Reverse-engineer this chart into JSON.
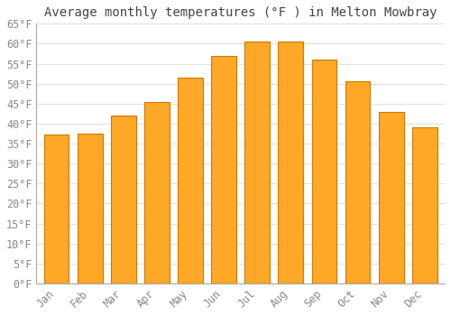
{
  "title": "Average monthly temperatures (°F ) in Melton Mowbray",
  "months": [
    "Jan",
    "Feb",
    "Mar",
    "Apr",
    "May",
    "Jun",
    "Jul",
    "Aug",
    "Sep",
    "Oct",
    "Nov",
    "Dec"
  ],
  "values": [
    37.2,
    37.4,
    42.0,
    45.5,
    51.5,
    57.0,
    60.5,
    60.5,
    56.0,
    50.5,
    43.0,
    39.0
  ],
  "ylim": [
    0,
    65
  ],
  "yticks": [
    0,
    5,
    10,
    15,
    20,
    25,
    30,
    35,
    40,
    45,
    50,
    55,
    60,
    65
  ],
  "bar_color": "#FFA726",
  "bar_edge_color": "#CC7A00",
  "background_color": "#FFFFFF",
  "grid_color": "#E0E0E0",
  "title_fontsize": 10,
  "tick_fontsize": 8.5,
  "bar_width": 0.75
}
